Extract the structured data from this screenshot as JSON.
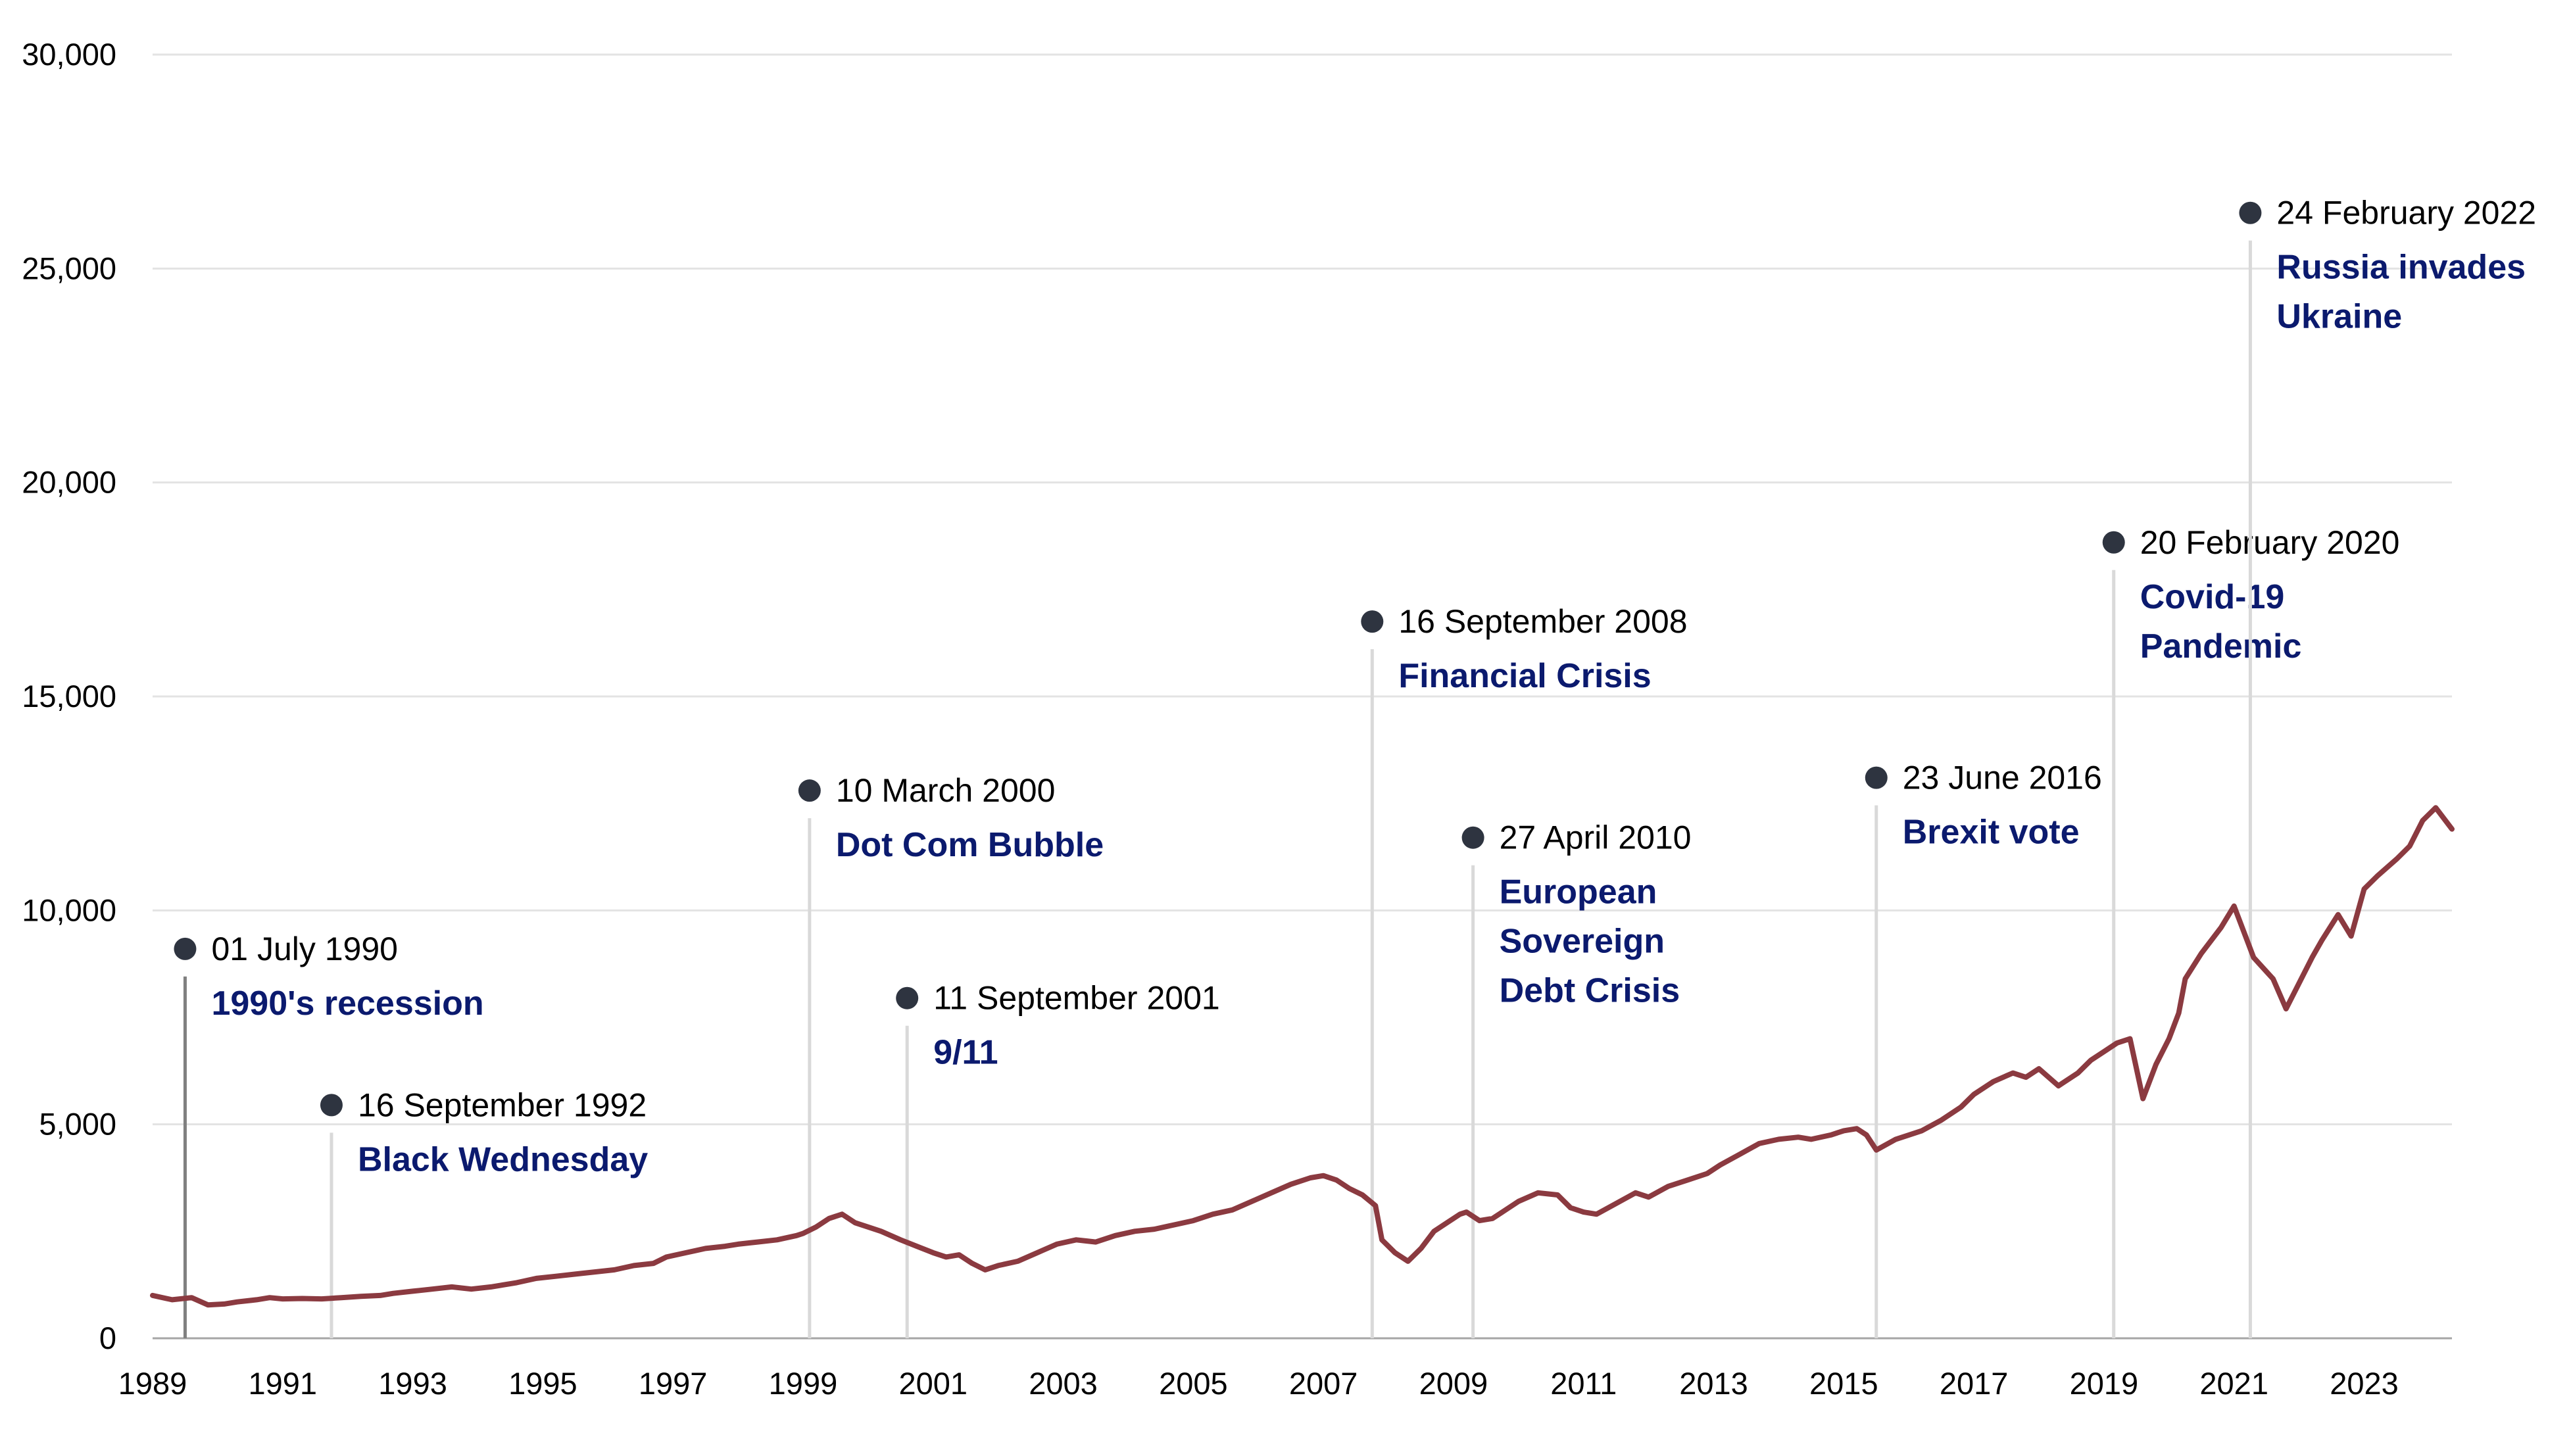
{
  "colors": {
    "line": "#8b3a40",
    "grid": "#e3e3e3",
    "axis": "#a6a6a6",
    "marker": "#2e3440",
    "stem": "#d9d9d9",
    "stem_first": "#808080",
    "event_label": "#0b1a6e"
  },
  "chart_data": {
    "type": "line",
    "title": "",
    "xlabel": "",
    "ylabel": "",
    "xlim": [
      1989,
      2024.35
    ],
    "ylim": [
      0,
      30000
    ],
    "grid": true,
    "legend": "none",
    "y_ticks": [
      0,
      5000,
      10000,
      15000,
      20000,
      25000,
      30000
    ],
    "y_tick_labels": [
      "0",
      "5,000",
      "10,000",
      "15,000",
      "20,000",
      "25,000",
      "30,000"
    ],
    "x_ticks": [
      1989,
      1991,
      1993,
      1995,
      1997,
      1999,
      2001,
      2003,
      2005,
      2007,
      2009,
      2011,
      2013,
      2015,
      2017,
      2019,
      2021,
      2023
    ],
    "x_tick_labels": [
      "1989",
      "1991",
      "1993",
      "1995",
      "1997",
      "1999",
      "2001",
      "2003",
      "2005",
      "2007",
      "2009",
      "2011",
      "2013",
      "2015",
      "2017",
      "2019",
      "2021",
      "2023"
    ],
    "series": [
      {
        "x": [
          1989.0,
          1989.3,
          1989.6,
          1989.85,
          1990.1,
          1990.3,
          1990.6,
          1990.8,
          1991.0,
          1991.3,
          1991.6,
          1991.9,
          1992.2,
          1992.5,
          1992.7,
          1993.0,
          1993.3,
          1993.6,
          1993.9,
          1994.2,
          1994.6,
          1994.9,
          1995.2,
          1995.5,
          1995.8,
          1996.1,
          1996.4,
          1996.7,
          1996.9,
          1997.2,
          1997.5,
          1997.8,
          1998.0,
          1998.3,
          1998.6,
          1998.9,
          1999.0,
          1999.2,
          1999.4,
          1999.6,
          1999.8,
          2000.0,
          2000.2,
          2000.5,
          2000.75,
          2001.0,
          2001.2,
          2001.4,
          2001.6,
          2001.8,
          2002.0,
          2002.3,
          2002.6,
          2002.9,
          2003.2,
          2003.5,
          2003.8,
          2004.1,
          2004.4,
          2004.7,
          2005.0,
          2005.3,
          2005.6,
          2005.9,
          2006.2,
          2006.5,
          2006.8,
          2007.0,
          2007.2,
          2007.4,
          2007.6,
          2007.8,
          2007.9,
          2008.1,
          2008.3,
          2008.5,
          2008.7,
          2008.9,
          2009.1,
          2009.2,
          2009.4,
          2009.6,
          2009.8,
          2010.0,
          2010.3,
          2010.6,
          2010.8,
          2011.0,
          2011.2,
          2011.5,
          2011.8,
          2012.0,
          2012.3,
          2012.6,
          2012.9,
          2013.1,
          2013.4,
          2013.7,
          2014.0,
          2014.3,
          2014.5,
          2014.8,
          2015.0,
          2015.2,
          2015.35,
          2015.5,
          2015.8,
          2016.0,
          2016.2,
          2016.5,
          2016.8,
          2017.0,
          2017.3,
          2017.6,
          2017.8,
          2018.0,
          2018.3,
          2018.6,
          2018.8,
          2019.0,
          2019.2,
          2019.4,
          2019.6,
          2019.8,
          2020.0,
          2020.15,
          2020.25,
          2020.5,
          2020.8,
          2021.0,
          2021.3,
          2021.6,
          2021.8,
          2022.0,
          2022.2,
          2022.35,
          2022.6,
          2022.8,
          2023.0,
          2023.2,
          2023.5,
          2023.7,
          2023.9,
          2024.1,
          2024.35
        ],
        "y": [
          1000,
          900,
          950,
          780,
          800,
          850,
          900,
          950,
          920,
          930,
          920,
          950,
          980,
          1000,
          1050,
          1100,
          1150,
          1200,
          1150,
          1200,
          1300,
          1400,
          1450,
          1500,
          1550,
          1600,
          1700,
          1750,
          1900,
          2000,
          2100,
          2150,
          2200,
          2250,
          2300,
          2400,
          2450,
          2600,
          2800,
          2900,
          2700,
          2600,
          2500,
          2300,
          2150,
          2000,
          1900,
          1950,
          1750,
          1600,
          1700,
          1800,
          2000,
          2200,
          2300,
          2250,
          2400,
          2500,
          2550,
          2650,
          2750,
          2900,
          3000,
          3200,
          3400,
          3600,
          3750,
          3800,
          3700,
          3500,
          3350,
          3100,
          2300,
          2000,
          1800,
          2100,
          2500,
          2700,
          2900,
          2950,
          2750,
          2800,
          3000,
          3200,
          3400,
          3350,
          3050,
          2950,
          2900,
          3150,
          3400,
          3300,
          3550,
          3700,
          3850,
          4050,
          4300,
          4550,
          4650,
          4700,
          4650,
          4750,
          4850,
          4900,
          4750,
          4400,
          4650,
          4750,
          4850,
          5100,
          5400,
          5700,
          6000,
          6200,
          6100,
          6300,
          5900,
          6200,
          6500,
          6700,
          6900,
          7000,
          5600,
          6400,
          7000,
          7600,
          8400,
          9000,
          9600,
          10100,
          8900,
          8400,
          7700,
          8300,
          8900,
          9300,
          9900,
          9400,
          10500,
          10800,
          11200,
          11500,
          12100,
          12400,
          11900
        ]
      }
    ],
    "annotations": [
      {
        "x": 1989.5,
        "y": 9100,
        "date": "01 July 1990",
        "label_lines": [
          "1990's recession"
        ]
      },
      {
        "x": 1991.75,
        "y": 5450,
        "date": "16 September 1992",
        "label_lines": [
          "Black Wednesday"
        ]
      },
      {
        "x": 1999.1,
        "y": 12800,
        "date": "10 March 2000",
        "label_lines": [
          "Dot Com Bubble"
        ]
      },
      {
        "x": 2000.6,
        "y": 7950,
        "date": "11 September 2001",
        "label_lines": [
          "9/11"
        ]
      },
      {
        "x": 2007.75,
        "y": 16750,
        "date": "16 September 2008",
        "label_lines": [
          "Financial Crisis"
        ]
      },
      {
        "x": 2009.3,
        "y": 11700,
        "date": "27 April 2010",
        "label_lines": [
          "European",
          "Sovereign",
          "Debt Crisis"
        ]
      },
      {
        "x": 2015.5,
        "y": 13100,
        "date": "23 June 2016",
        "label_lines": [
          "Brexit vote"
        ]
      },
      {
        "x": 2019.15,
        "y": 18600,
        "date": "20 February 2020",
        "label_lines": [
          "Covid-19",
          "Pandemic"
        ]
      },
      {
        "x": 2021.25,
        "y": 26300,
        "date": "24 February 2022",
        "label_lines": [
          "Russia invades",
          "Ukraine"
        ]
      }
    ]
  }
}
